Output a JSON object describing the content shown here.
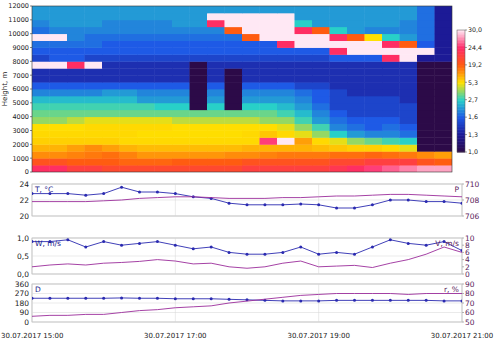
{
  "chart_data": [
    {
      "type": "heatmap",
      "ylabel": "Height, m",
      "tick_labels": "y",
      "xlim": [
        15,
        21
      ],
      "ylim": [
        0,
        12000
      ],
      "yticks": [
        0,
        1000,
        2000,
        3000,
        4000,
        5000,
        6000,
        7000,
        8000,
        9000,
        10000,
        11000,
        12000
      ],
      "x_edges": [
        15,
        15.25,
        15.5,
        15.75,
        16,
        16.25,
        16.5,
        16.75,
        17,
        17.25,
        17.5,
        17.75,
        18,
        18.25,
        18.5,
        18.75,
        19,
        19.25,
        19.5,
        19.75,
        20,
        20.25,
        20.5,
        20.75,
        21
      ],
      "y_edges": [
        0,
        500,
        1000,
        1500,
        2000,
        2500,
        3000,
        3500,
        4000,
        4500,
        5000,
        5500,
        6000,
        6500,
        7000,
        7500,
        8000,
        8500,
        9000,
        9500,
        10000,
        10500,
        11000,
        11500,
        12000
      ],
      "cells": [
        [
          24,
          24,
          22,
          22,
          21,
          21,
          21,
          21,
          21,
          21,
          21,
          21,
          22,
          22,
          22,
          22,
          22,
          23,
          24,
          25,
          26,
          27,
          28,
          28
        ],
        [
          20,
          20,
          19,
          19,
          19,
          18,
          18,
          18,
          19,
          19,
          19,
          19,
          20,
          20,
          20,
          20,
          20,
          21,
          21,
          22,
          22,
          22,
          20,
          19
        ],
        [
          14,
          14,
          15,
          16,
          17,
          15,
          13,
          13,
          13,
          13,
          13,
          14,
          14,
          15,
          16,
          16,
          16,
          17,
          17,
          18,
          17,
          16,
          14,
          12
        ],
        [
          10,
          10,
          12,
          14,
          12,
          10,
          9,
          9,
          9,
          9,
          9,
          9,
          10,
          10,
          10,
          10,
          9,
          8,
          7,
          7,
          6,
          5,
          1.0,
          1.0
        ],
        [
          7,
          7,
          7,
          7,
          7,
          6,
          6,
          6,
          6,
          6,
          6,
          6,
          6,
          25,
          30,
          12,
          6,
          5,
          4,
          3.5,
          3,
          2.7,
          1.0,
          1.0
        ],
        [
          6,
          6,
          6,
          6,
          6,
          6,
          5.5,
          5.5,
          5.5,
          5.5,
          5.5,
          5.5,
          6,
          8,
          6,
          5,
          4,
          2.7,
          2.2,
          2,
          2,
          1.8,
          1.0,
          1.0
        ],
        [
          5.5,
          5.5,
          5.5,
          6,
          6,
          6,
          6,
          6,
          5.5,
          5.5,
          5.5,
          5.5,
          5.5,
          5.5,
          5,
          4,
          3,
          2,
          1.8,
          1.6,
          1.8,
          1.6,
          1.0,
          1.0
        ],
        [
          4,
          4,
          4.5,
          5,
          5,
          5,
          5,
          5,
          4.5,
          4.5,
          4.5,
          4.5,
          4.5,
          4,
          4,
          3,
          2.2,
          1.8,
          1.6,
          1.6,
          1.6,
          1.5,
          1.0,
          1.0
        ],
        [
          3.5,
          3.5,
          3.5,
          3.5,
          3.5,
          3.5,
          3.5,
          3.5,
          3.5,
          3.5,
          3.5,
          3.5,
          3.5,
          3.5,
          3,
          2.5,
          2,
          1.6,
          1.5,
          1.5,
          1.5,
          1.5,
          1.0,
          1.0
        ],
        [
          3,
          3,
          3,
          3,
          3,
          3,
          3,
          2.7,
          2.7,
          1.0,
          2.7,
          1.0,
          2.7,
          2.7,
          2.5,
          2.2,
          1.8,
          1.5,
          1.5,
          1.5,
          1.5,
          1.5,
          1.0,
          1.0
        ],
        [
          2.5,
          2.5,
          2.5,
          2.5,
          2.5,
          2.5,
          2.2,
          2.2,
          2.2,
          1.0,
          2.2,
          1.0,
          2.2,
          2.2,
          2.2,
          2,
          1.6,
          1.5,
          1.5,
          1.5,
          1.5,
          1.4,
          1.0,
          1.0
        ],
        [
          2,
          2,
          2,
          2,
          2.2,
          2.2,
          2,
          2,
          2,
          1.0,
          2,
          1.0,
          2,
          2,
          2,
          1.8,
          1.6,
          1.5,
          1.4,
          1.4,
          1.4,
          1.4,
          1.0,
          1.0
        ],
        [
          1.6,
          1.6,
          1.6,
          1.6,
          1.6,
          1.6,
          1.6,
          1.6,
          1.6,
          1.0,
          1.6,
          1.0,
          1.6,
          1.6,
          1.6,
          1.5,
          1.5,
          1.4,
          1.4,
          1.4,
          1.4,
          1.4,
          1.0,
          1.0
        ],
        [
          1.4,
          1.4,
          1.4,
          1.4,
          1.4,
          1.4,
          1.4,
          1.4,
          1.4,
          1.0,
          1.4,
          1.0,
          1.4,
          1.4,
          1.4,
          1.4,
          1.4,
          1.4,
          1.4,
          1.4,
          1.4,
          1.4,
          1.0,
          1.0
        ],
        [
          1.4,
          1.4,
          1.4,
          1.4,
          1.4,
          1.4,
          1.4,
          1.4,
          1.4,
          1.0,
          1.4,
          1.0,
          1.4,
          1.4,
          1.4,
          1.4,
          1.4,
          1.4,
          1.4,
          1.4,
          1.4,
          1.4,
          1.0,
          1.0
        ],
        [
          30,
          30,
          24,
          30,
          1.4,
          1.4,
          1.4,
          1.4,
          1.4,
          1.0,
          1.4,
          1.4,
          1.4,
          1.4,
          1.4,
          1.4,
          1.4,
          1.4,
          1.4,
          1.4,
          1.4,
          1.4,
          1.0,
          1.0
        ],
        [
          1.5,
          1.6,
          1.6,
          1.5,
          1.5,
          1.5,
          1.5,
          1.5,
          1.5,
          1.5,
          1.5,
          1.5,
          1.5,
          1.5,
          1.5,
          1.5,
          1.5,
          1.6,
          1.6,
          1.6,
          24,
          30,
          1.3,
          1.3
        ],
        [
          1.6,
          1.6,
          1.6,
          1.6,
          1.6,
          1.6,
          1.6,
          1.6,
          1.6,
          1.6,
          1.6,
          1.6,
          1.6,
          1.6,
          1.6,
          1.6,
          1.6,
          24,
          30,
          30,
          30,
          30,
          30,
          1.3
        ],
        [
          1.8,
          1.8,
          1.8,
          1.8,
          1.6,
          1.6,
          1.6,
          1.6,
          1.6,
          1.6,
          1.6,
          1.6,
          1.6,
          1.6,
          24,
          30,
          30,
          30,
          30,
          30,
          24,
          19,
          1.6,
          1.3
        ],
        [
          30,
          30,
          2,
          1.8,
          1.8,
          1.8,
          1.8,
          1.8,
          1.8,
          1.8,
          1.8,
          1.8,
          19,
          30,
          30,
          30,
          30,
          24,
          19,
          5.3,
          2.7,
          2.2,
          1.8,
          1.3
        ],
        [
          1.8,
          2,
          2,
          2,
          2,
          2,
          2,
          2,
          2,
          2,
          2,
          19,
          30,
          30,
          30,
          24,
          19,
          2.7,
          2.2,
          2,
          2,
          2,
          1.8,
          1.3
        ],
        [
          2,
          2.2,
          2.2,
          2.2,
          2,
          2,
          2,
          2,
          2.2,
          2.2,
          24,
          30,
          30,
          30,
          30,
          2.7,
          2.2,
          2.2,
          2.2,
          2.2,
          2.2,
          2,
          1.8,
          1.3
        ],
        [
          2.2,
          2.2,
          2.2,
          2.2,
          2.2,
          2.2,
          2.2,
          2.2,
          2.2,
          2.2,
          30,
          30,
          30,
          30,
          30,
          2.2,
          2.2,
          2.2,
          2.2,
          2.2,
          2.2,
          2.2,
          1.8,
          1.3
        ],
        [
          2.2,
          2.2,
          2.2,
          2.2,
          2.2,
          2.2,
          2.2,
          2.2,
          2.2,
          2.2,
          2.2,
          2.2,
          2.2,
          2.2,
          2.2,
          2.2,
          2.2,
          2.2,
          2.2,
          2.2,
          2.2,
          2.2,
          1.8,
          1.3
        ]
      ],
      "colorbar": {
        "range": [
          1.0,
          30.0
        ],
        "ticks": [
          {
            "value": 1.0,
            "label": "1,0"
          },
          {
            "value": 1.3,
            "label": "1,3"
          },
          {
            "value": 1.6,
            "label": "1,6"
          },
          {
            "value": 2.7,
            "label": "2,7"
          },
          {
            "value": 5.3,
            "label": "5,3"
          },
          {
            "value": 19.2,
            "label": "19,2"
          },
          {
            "value": 24.4,
            "label": "24,4"
          },
          {
            "value": 30.0,
            "label": "30,0"
          }
        ],
        "colors": [
          "#2c0a48",
          "#1c1a96",
          "#1e5ae6",
          "#28d0c8",
          "#ffe000",
          "#ff5a10",
          "#ff2a6a",
          "#ffe8f4"
        ]
      }
    },
    {
      "type": "line",
      "ylabel": "T, °C",
      "y2label": "P",
      "grid": true,
      "tick_labels": "y",
      "x": [
        15,
        15.25,
        15.5,
        15.75,
        16,
        16.25,
        16.5,
        16.75,
        17,
        17.25,
        17.5,
        17.75,
        18,
        18.25,
        18.5,
        18.75,
        19,
        19.25,
        19.5,
        19.75,
        20,
        20.25,
        20.5,
        20.75,
        21
      ],
      "xlim": [
        15,
        21
      ],
      "xticks": [
        15,
        17,
        19,
        21
      ],
      "ylim": [
        20,
        24
      ],
      "yticks": [
        20,
        22,
        24
      ],
      "y2lim": [
        706,
        710
      ],
      "y2ticks": [
        706,
        708,
        710
      ],
      "series": [
        {
          "color": "#2a2ab0",
          "marker": "circle",
          "values": [
            22.8,
            22.8,
            22.8,
            22.6,
            22.8,
            23.6,
            23.0,
            23.0,
            22.8,
            22.4,
            22.2,
            21.6,
            21.4,
            21.4,
            21.4,
            21.5,
            21.4,
            21.0,
            21.0,
            21.4,
            22.0,
            22.0,
            21.8,
            21.8,
            21.6
          ]
        },
        {
          "color": "#9b2d9b",
          "axis": "y2",
          "values": [
            707.8,
            707.8,
            707.8,
            707.8,
            707.9,
            708.0,
            708.2,
            708.3,
            708.4,
            708.4,
            708.3,
            708.2,
            708.2,
            708.2,
            708.3,
            708.3,
            708.4,
            708.5,
            708.5,
            708.6,
            708.7,
            708.7,
            708.6,
            708.5,
            708.4
          ]
        }
      ]
    },
    {
      "type": "line",
      "ylabel": "W, m/s",
      "y2label": "V, m/s",
      "grid": true,
      "tick_labels": "y",
      "x": [
        15,
        15.25,
        15.5,
        15.75,
        16,
        16.25,
        16.5,
        16.75,
        17,
        17.25,
        17.5,
        17.75,
        18,
        18.25,
        18.5,
        18.75,
        19,
        19.25,
        19.5,
        19.75,
        20,
        20.25,
        20.5,
        20.75,
        21
      ],
      "xlim": [
        15,
        21
      ],
      "xticks": [
        15,
        17,
        19,
        21
      ],
      "ylim": [
        0,
        1
      ],
      "yticks": [
        {
          "value": 0,
          "label": "0,0"
        },
        {
          "value": 0.5,
          "label": "0,5"
        },
        {
          "value": 1,
          "label": "1,0"
        }
      ],
      "y2lim": [
        0,
        10
      ],
      "y2ticks": [
        0,
        2,
        4,
        6,
        8,
        10
      ],
      "series": [
        {
          "color": "#2a2ab0",
          "marker": "circle",
          "values": [
            0.9,
            0.9,
            0.95,
            0.75,
            0.9,
            0.8,
            0.85,
            0.9,
            0.8,
            0.7,
            0.75,
            0.6,
            0.55,
            0.55,
            0.6,
            0.75,
            0.55,
            0.6,
            0.55,
            0.75,
            0.95,
            0.85,
            0.8,
            0.9,
            0.65
          ]
        },
        {
          "color": "#9b2d9b",
          "axis": "y2",
          "values": [
            2.0,
            2.5,
            2.8,
            2.5,
            3.0,
            3.2,
            3.5,
            4.0,
            3.6,
            2.8,
            3.0,
            2.0,
            1.6,
            2.0,
            3.0,
            3.6,
            2.0,
            2.2,
            2.4,
            1.8,
            3.0,
            4.0,
            5.5,
            7.5,
            6.0
          ]
        }
      ]
    },
    {
      "type": "line",
      "ylabel": "D",
      "y2label": "r, %",
      "grid": true,
      "x": [
        15,
        15.25,
        15.5,
        15.75,
        16,
        16.25,
        16.5,
        16.75,
        17,
        17.25,
        17.5,
        17.75,
        18,
        18.25,
        18.5,
        18.75,
        19,
        19.25,
        19.5,
        19.75,
        20,
        20.25,
        20.5,
        20.75,
        21
      ],
      "xlim": [
        15,
        21
      ],
      "xticks": [
        {
          "value": 15,
          "label": "30.07.2017 15:00"
        },
        {
          "value": 17,
          "label": "30.07.2017 17:00"
        },
        {
          "value": 19,
          "label": "30.07.2017 19:00"
        },
        {
          "value": 21,
          "label": "30.07.2017 21:00"
        }
      ],
      "ylim": [
        0,
        360
      ],
      "yticks": [
        0,
        90,
        180,
        270,
        360
      ],
      "y2lim": [
        50,
        90
      ],
      "y2ticks": [
        50,
        60,
        70,
        80,
        90
      ],
      "series": [
        {
          "color": "#2a2ab0",
          "marker": "circle",
          "values": [
            225,
            225,
            225,
            225,
            225,
            228,
            225,
            225,
            220,
            220,
            220,
            215,
            210,
            205,
            200,
            200,
            200,
            205,
            205,
            205,
            205,
            205,
            205,
            200,
            200
          ]
        },
        {
          "color": "#9b2d9b",
          "axis": "y2",
          "values": [
            56,
            57,
            57,
            58,
            58,
            60,
            62,
            63,
            65,
            66,
            67,
            70,
            72,
            74,
            76,
            78,
            79,
            80,
            80,
            80,
            80,
            79,
            80,
            80,
            80
          ]
        }
      ]
    }
  ]
}
